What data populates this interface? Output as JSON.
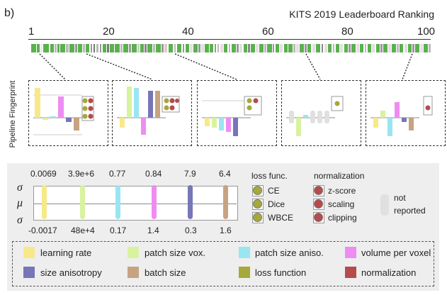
{
  "panel_label": "b)",
  "title": "KITS 2019 Leaderboard Ranking",
  "axis_ticks": [
    "1",
    "20",
    "40",
    "60",
    "80",
    "100"
  ],
  "fingerprint_label": "Pipeline Fingerprint",
  "strip": [
    {
      "color": "#5bb04e",
      "w": 5
    },
    {
      "color": "#5bb04e",
      "w": 3
    },
    {
      "color": "#e8e8e8",
      "w": 2
    },
    {
      "color": "#5bb04e",
      "w": 6
    },
    {
      "color": "#5bb04e",
      "w": 4
    },
    {
      "color": "#bbbbbb",
      "w": 2
    },
    {
      "color": "#5bb04e",
      "w": 2
    },
    {
      "color": "#5bb04e",
      "w": 5
    },
    {
      "color": "#bbbbbb",
      "w": 3
    },
    {
      "color": "#5bb04e",
      "w": 5
    },
    {
      "color": "#999999",
      "w": 2
    },
    {
      "color": "#5bb04e",
      "w": 4
    },
    {
      "color": "#bbbbbb",
      "w": 2
    },
    {
      "color": "#5bb04e",
      "w": 4
    },
    {
      "color": "#999999",
      "w": 2
    },
    {
      "color": "#777777",
      "w": 2
    },
    {
      "color": "#bbbbbb",
      "w": 3
    },
    {
      "color": "#999999",
      "w": 2
    },
    {
      "color": "#5bb04e",
      "w": 4
    },
    {
      "color": "#777777",
      "w": 2
    },
    {
      "color": "#5bb04e",
      "w": 4
    },
    {
      "color": "#5bb04e",
      "w": 5
    },
    {
      "color": "#bbbbbb",
      "w": 2
    },
    {
      "color": "#5bb04e",
      "w": 5
    },
    {
      "color": "#999999",
      "w": 2
    },
    {
      "color": "#5bb04e",
      "w": 5
    },
    {
      "color": "#cccccc",
      "w": 2
    },
    {
      "color": "#5bb04e",
      "w": 4
    },
    {
      "color": "#888888",
      "w": 2
    },
    {
      "color": "#5bb04e",
      "w": 5
    },
    {
      "color": "#bbbbbb",
      "w": 2
    },
    {
      "color": "#5bb04e",
      "w": 5
    },
    {
      "color": "#999999",
      "w": 2
    },
    {
      "color": "#e0c8d0",
      "w": 3
    },
    {
      "color": "#5bb04e",
      "w": 5
    },
    {
      "color": "#bbbbbb",
      "w": 2
    },
    {
      "color": "#5bb04e",
      "w": 5
    },
    {
      "color": "#999999",
      "w": 2
    },
    {
      "color": "#5bb04e",
      "w": 4
    },
    {
      "color": "#e8dde0",
      "w": 3
    },
    {
      "color": "#5bb04e",
      "w": 4
    },
    {
      "color": "#999999",
      "w": 2
    },
    {
      "color": "#e0e0e0",
      "w": 3
    },
    {
      "color": "#5bb04e",
      "w": 4
    },
    {
      "color": "#5bb04e",
      "w": 4
    },
    {
      "color": "#999999",
      "w": 2
    },
    {
      "color": "#bbbbbb",
      "w": 2
    },
    {
      "color": "#e8dde0",
      "w": 3
    },
    {
      "color": "#5bb04e",
      "w": 4
    },
    {
      "color": "#bbbbbb",
      "w": 2
    },
    {
      "color": "#5bb04e",
      "w": 5
    },
    {
      "color": "#999999",
      "w": 2
    },
    {
      "color": "#e0e0e0",
      "w": 3
    },
    {
      "color": "#5bb04e",
      "w": 4
    },
    {
      "color": "#888888",
      "w": 2
    },
    {
      "color": "#5bb04e",
      "w": 4
    },
    {
      "color": "#e8dde0",
      "w": 3
    },
    {
      "color": "#5bb04e",
      "w": 4
    },
    {
      "color": "#bbbbbb",
      "w": 2
    },
    {
      "color": "#5bb04e",
      "w": 5
    },
    {
      "color": "#999999",
      "w": 2
    },
    {
      "color": "#5bb04e",
      "w": 4
    },
    {
      "color": "#e0e0e0",
      "w": 3
    },
    {
      "color": "#5bb04e",
      "w": 4
    },
    {
      "color": "#5bb04e",
      "w": 4
    },
    {
      "color": "#bbbbbb",
      "w": 2
    },
    {
      "color": "#e8dde0",
      "w": 3
    },
    {
      "color": "#5bb04e",
      "w": 4
    },
    {
      "color": "#999999",
      "w": 2
    },
    {
      "color": "#5bb04e",
      "w": 4
    },
    {
      "color": "#e0e0e0",
      "w": 3
    },
    {
      "color": "#5bb04e",
      "w": 5
    },
    {
      "color": "#888888",
      "w": 2
    },
    {
      "color": "#e8dde0",
      "w": 3
    },
    {
      "color": "#5bb04e",
      "w": 4
    },
    {
      "color": "#bbbbbb",
      "w": 2
    },
    {
      "color": "#5bb04e",
      "w": 4
    },
    {
      "color": "#e0e0e0",
      "w": 3
    },
    {
      "color": "#5bb04e",
      "w": 4
    },
    {
      "color": "#999999",
      "w": 2
    },
    {
      "color": "#5bb04e",
      "w": 4
    },
    {
      "color": "#e8dde0",
      "w": 3
    },
    {
      "color": "#5bb04e",
      "w": 4
    },
    {
      "color": "#bbbbbb",
      "w": 2
    },
    {
      "color": "#5bb04e",
      "w": 4
    },
    {
      "color": "#e0e0e0",
      "w": 3
    },
    {
      "color": "#5bb04e",
      "w": 4
    },
    {
      "color": "#999999",
      "w": 2
    },
    {
      "color": "#5bb04e",
      "w": 4
    },
    {
      "color": "#e8dde0",
      "w": 3
    },
    {
      "color": "#5bb04e",
      "w": 4
    },
    {
      "color": "#bbbbbb",
      "w": 2
    },
    {
      "color": "#5bb04e",
      "w": 4
    },
    {
      "color": "#e0e0e0",
      "w": 3
    },
    {
      "color": "#5bb04e",
      "w": 4
    },
    {
      "color": "#999999",
      "w": 2
    },
    {
      "color": "#5bb04e",
      "w": 4
    },
    {
      "color": "#e8dde0",
      "w": 3
    },
    {
      "color": "#5bb04e",
      "w": 4
    },
    {
      "color": "#bbbbbb",
      "w": 2
    }
  ],
  "sigma_top": "σ",
  "mu": "μ",
  "sigma_bottom": "σ",
  "parameters": [
    {
      "name": "learning rate",
      "color": "#f7e98a",
      "top": "0.0069",
      "bottom": "-0.0017"
    },
    {
      "name": "patch size vox.",
      "color": "#d8f2a0",
      "top": "3.9e+6",
      "bottom": "48e+4"
    },
    {
      "name": "patch size aniso.",
      "color": "#9ae5f2",
      "top": "0.77",
      "bottom": "0.17"
    },
    {
      "name": "volume per voxel",
      "color": "#ef8cf2",
      "top": "0.84",
      "bottom": "1.4"
    },
    {
      "name": "size anisotropy",
      "color": "#7676b8",
      "top": "7.9",
      "bottom": "0.3"
    },
    {
      "name": "batch size",
      "color": "#c7a381",
      "top": "6.4",
      "bottom": "1.6"
    }
  ],
  "loss": {
    "heading": "loss func.",
    "color": "#a6a83c",
    "items": [
      "CE",
      "Dice",
      "WBCE"
    ]
  },
  "normalization": {
    "heading": "normalization",
    "color": "#b54b4b",
    "items": [
      "z-score",
      "scaling",
      "clipping"
    ]
  },
  "not_reported": {
    "line1": "not",
    "line2": "reported"
  },
  "legend": [
    {
      "label": "learning rate",
      "color": "#f7e98a"
    },
    {
      "label": "patch size vox.",
      "color": "#d8f2a0"
    },
    {
      "label": "patch size aniso.",
      "color": "#9ae5f2"
    },
    {
      "label": "volume per voxel",
      "color": "#ef8cf2"
    },
    {
      "label": "size anisotropy",
      "color": "#7676b8"
    },
    {
      "label": "batch size",
      "color": "#c7a381"
    },
    {
      "label": "loss function",
      "color": "#a6a83c"
    },
    {
      "label": "normalization",
      "color": "#b54b4b"
    }
  ]
}
